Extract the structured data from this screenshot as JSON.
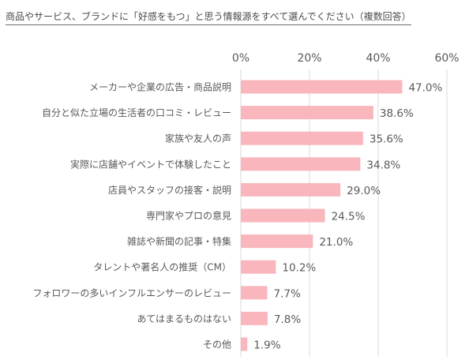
{
  "chart_data": {
    "type": "bar",
    "orientation": "horizontal",
    "title": "商品やサービス、ブランドに「好感をもつ」と思う情報源をすべて選んでください（複数回答）",
    "xlabel": "",
    "ylabel": "",
    "xlim": [
      0,
      60
    ],
    "ticks": [
      0,
      20,
      40,
      60
    ],
    "tick_labels": [
      "0%",
      "20%",
      "40%",
      "60%"
    ],
    "grid": true,
    "categories": [
      "メーカーや企業の広告・商品説明",
      "自分と似た立場の生活者の口コミ・レビュー",
      "家族や友人の声",
      "実際に店舗やイベントで体験したこと",
      "店員やスタッフの接客・説明",
      "専門家やプロの意見",
      "雑誌や新聞の記事・特集",
      "タレントや著名人の推奨（CM）",
      "フォロワーの多いインフルエンサーのレビュー",
      "あてはまるものはない",
      "その他"
    ],
    "values": [
      47.0,
      38.6,
      35.6,
      34.8,
      29.0,
      24.5,
      21.0,
      10.2,
      7.7,
      7.8,
      1.9
    ],
    "value_labels": [
      "47.0%",
      "38.6%",
      "35.6%",
      "34.8%",
      "29.0%",
      "24.5%",
      "21.0%",
      "10.2%",
      "7.7%",
      "7.8%",
      "1.9%"
    ],
    "bar_color": "#f9b7bd",
    "grid_color": "#d9d9d9",
    "text_color": "#595959"
  }
}
